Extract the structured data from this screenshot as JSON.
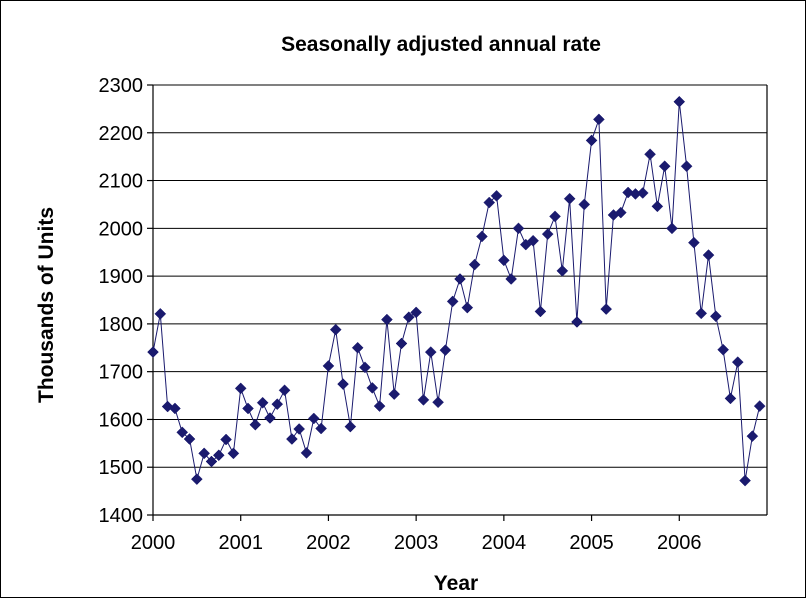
{
  "chart_data": {
    "type": "line",
    "title": "Seasonally adjusted annual rate",
    "xlabel": "Year",
    "ylabel": "Thousands of Units",
    "ylim": [
      1400,
      2300
    ],
    "yticks": [
      1400,
      1500,
      1600,
      1700,
      1800,
      1900,
      2000,
      2100,
      2200,
      2300
    ],
    "xlim": [
      2000,
      2007
    ],
    "xticks": [
      2000,
      2001,
      2002,
      2003,
      2004,
      2005,
      2006
    ],
    "grid": true,
    "legend": "none",
    "marker": "diamond",
    "color": "#1a1a6e",
    "series": [
      {
        "x": [
          2000.0,
          2000.0833,
          2000.1667,
          2000.25,
          2000.3333,
          2000.4167,
          2000.5,
          2000.5833,
          2000.6667,
          2000.75,
          2000.8333,
          2000.9167,
          2001.0,
          2001.0833,
          2001.1667,
          2001.25,
          2001.3333,
          2001.4167,
          2001.5,
          2001.5833,
          2001.6667,
          2001.75,
          2001.8333,
          2001.9167,
          2002.0,
          2002.0833,
          2002.1667,
          2002.25,
          2002.3333,
          2002.4167,
          2002.5,
          2002.5833,
          2002.6667,
          2002.75,
          2002.8333,
          2002.9167,
          2003.0,
          2003.0833,
          2003.1667,
          2003.25,
          2003.3333,
          2003.4167,
          2003.5,
          2003.5833,
          2003.6667,
          2003.75,
          2003.8333,
          2003.9167,
          2004.0,
          2004.0833,
          2004.1667,
          2004.25,
          2004.3333,
          2004.4167,
          2004.5,
          2004.5833,
          2004.6667,
          2004.75,
          2004.8333,
          2004.9167,
          2005.0,
          2005.0833,
          2005.1667,
          2005.25,
          2005.3333,
          2005.4167,
          2005.5,
          2005.5833,
          2005.6667,
          2005.75,
          2005.8333,
          2005.9167,
          2006.0,
          2006.0833,
          2006.1667,
          2006.25,
          2006.3333,
          2006.4167,
          2006.5,
          2006.5833,
          2006.6667,
          2006.75,
          2006.8333,
          2006.9167
        ],
        "values": [
          1741,
          1821,
          1627,
          1623,
          1573,
          1559,
          1475,
          1529,
          1512,
          1525,
          1558,
          1529,
          1665,
          1623,
          1589,
          1635,
          1603,
          1632,
          1661,
          1559,
          1580,
          1530,
          1602,
          1581,
          1712,
          1788,
          1674,
          1585,
          1750,
          1709,
          1666,
          1628,
          1809,
          1653,
          1759,
          1814,
          1824,
          1641,
          1741,
          1636,
          1745,
          1847,
          1894,
          1834,
          1924,
          1983,
          2054,
          2068,
          1933,
          1894,
          2000,
          1966,
          1974,
          1826,
          1988,
          2025,
          1911,
          2062,
          1804,
          2050,
          2184,
          2228,
          1831,
          2028,
          2033,
          2075,
          2072,
          2074,
          2155,
          2046,
          2130,
          2000,
          2265,
          2130,
          1970,
          1822,
          1944,
          1816,
          1746,
          1644,
          1720,
          1472,
          1565,
          1628
        ]
      }
    ]
  }
}
